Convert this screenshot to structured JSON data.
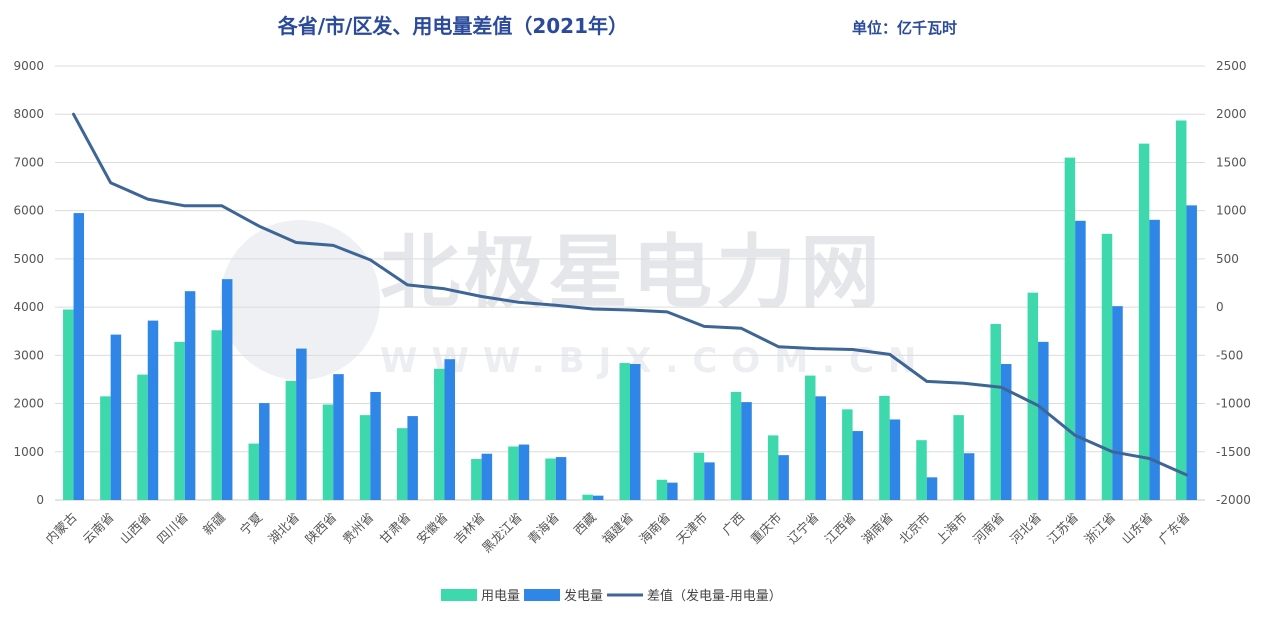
{
  "chart_data": {
    "type": "bar",
    "title": "各省/市/区发、用电量差值（2021年）",
    "unit": "单位：亿千瓦时",
    "watermark": "北极星电力网",
    "watermark_url": "WWW.BJX.COM.CN",
    "categories": [
      "内蒙古",
      "云南省",
      "山西省",
      "四川省",
      "新疆",
      "宁夏",
      "湖北省",
      "陕西省",
      "贵州省",
      "甘肃省",
      "安徽省",
      "吉林省",
      "黑龙江省",
      "青海省",
      "西藏",
      "福建省",
      "海南省",
      "天津市",
      "广西",
      "重庆市",
      "辽宁省",
      "江西省",
      "湖南省",
      "北京市",
      "上海市",
      "河南省",
      "河北省",
      "江苏省",
      "浙江省",
      "山东省",
      "广东省"
    ],
    "series": [
      {
        "name": "用电量",
        "type": "bar",
        "axis": "left",
        "color": "#3dd9ad",
        "values": [
          3950,
          2150,
          2600,
          3280,
          3520,
          1170,
          2470,
          1980,
          1760,
          1490,
          2720,
          850,
          1110,
          860,
          110,
          2840,
          420,
          980,
          2240,
          1340,
          2580,
          1880,
          2160,
          1240,
          1760,
          3650,
          4300,
          7100,
          5520,
          7390,
          7870
        ]
      },
      {
        "name": "发电量",
        "type": "bar",
        "axis": "left",
        "color": "#2f86e6",
        "values": [
          5950,
          3430,
          3720,
          4330,
          4580,
          2010,
          3140,
          2610,
          2240,
          1740,
          2920,
          960,
          1150,
          890,
          90,
          2820,
          360,
          780,
          2030,
          930,
          2150,
          1430,
          1670,
          470,
          970,
          2820,
          3280,
          5790,
          4020,
          5810,
          6110
        ]
      },
      {
        "name": "差值（发电量-用电量）",
        "type": "line",
        "axis": "right",
        "color": "#3d6596",
        "values": [
          2000,
          1290,
          1120,
          1050,
          1050,
          840,
          670,
          640,
          490,
          230,
          190,
          110,
          50,
          20,
          -20,
          -30,
          -50,
          -200,
          -220,
          -410,
          -430,
          -440,
          -490,
          -770,
          -790,
          -830,
          -1020,
          -1330,
          -1500,
          -1570,
          -1740
        ]
      }
    ],
    "y_left": {
      "min": 0,
      "max": 9000,
      "step": 1000
    },
    "y_right": {
      "min": -2000,
      "max": 2500,
      "step": 500
    },
    "legend_position": "bottom",
    "grid": true
  }
}
